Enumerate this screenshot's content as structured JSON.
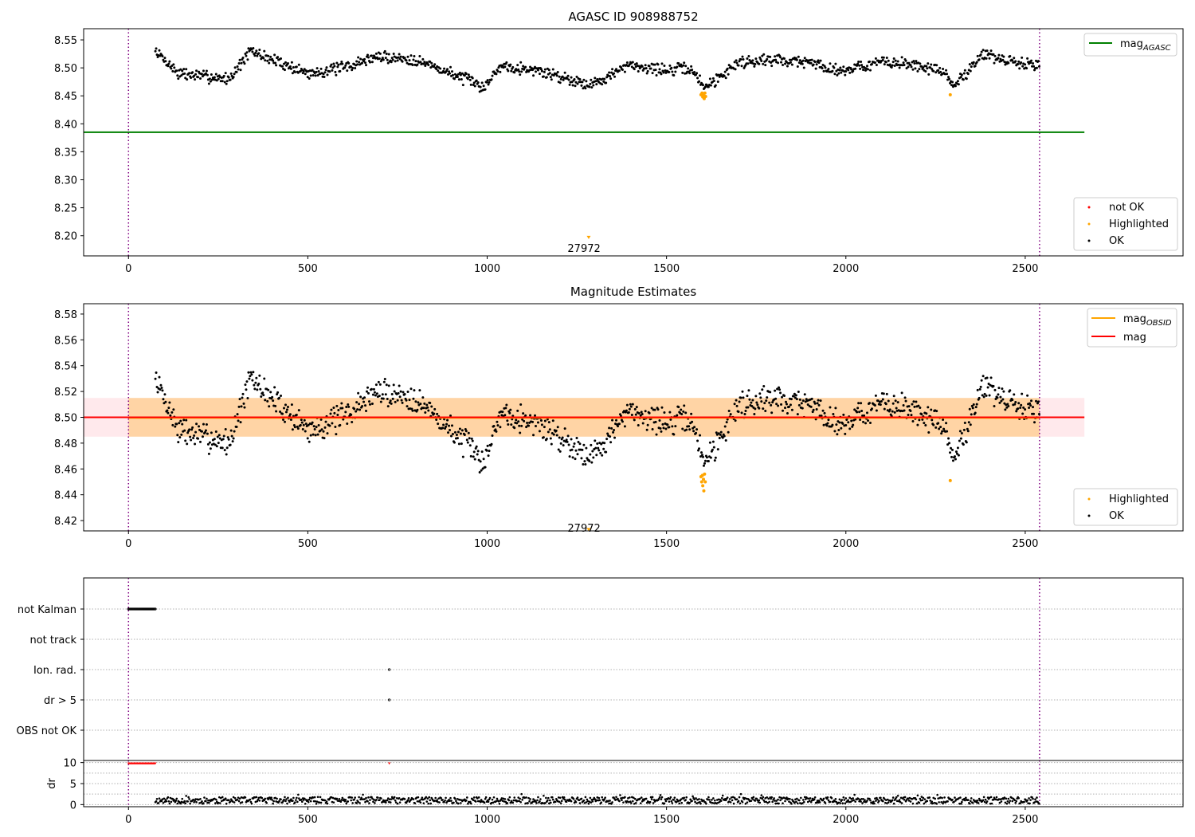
{
  "chart_data": [
    {
      "type": "scatter",
      "title": "AGASC ID 908988752",
      "xlabel": "",
      "ylabel": "",
      "xlim": [
        -125,
        2940
      ],
      "ylim": [
        8.164,
        8.57
      ],
      "xticks": [
        0,
        500,
        1000,
        1500,
        2000,
        2500
      ],
      "yticks": [
        8.2,
        8.25,
        8.3,
        8.35,
        8.4,
        8.45,
        8.5,
        8.55
      ],
      "vlines": [
        0,
        2540
      ],
      "reference_lines": [
        {
          "name": "mag_AGASC",
          "y": 8.385,
          "x_range": [
            -125,
            2665
          ],
          "color": "#008000"
        }
      ],
      "legend_top": [
        {
          "label": "mag",
          "sub": "AGASC",
          "color": "#008000"
        }
      ],
      "legend_bottom": [
        {
          "label": "not OK",
          "color": "#ff0000"
        },
        {
          "label": "Highlighted",
          "color": "#ffa500"
        },
        {
          "label": "OK",
          "color": "#000000"
        }
      ],
      "annotations": [
        {
          "text": "27972",
          "x": 1270,
          "y": 8.178
        }
      ],
      "series": [
        {
          "name": "OK",
          "color": "#000000",
          "x_range": [
            75,
            2540
          ],
          "profile": [
            [
              75,
              8.53
            ],
            [
              140,
              8.49
            ],
            [
              280,
              8.48
            ],
            [
              340,
              8.53
            ],
            [
              500,
              8.49
            ],
            [
              600,
              8.5
            ],
            [
              690,
              8.52
            ],
            [
              800,
              8.515
            ],
            [
              940,
              8.48
            ],
            [
              990,
              8.465
            ],
            [
              1040,
              8.505
            ],
            [
              1140,
              8.495
            ],
            [
              1230,
              8.48
            ],
            [
              1290,
              8.47
            ],
            [
              1400,
              8.505
            ],
            [
              1510,
              8.495
            ],
            [
              1560,
              8.5
            ],
            [
              1590,
              8.48
            ],
            [
              1610,
              8.465
            ],
            [
              1700,
              8.51
            ],
            [
              1800,
              8.515
            ],
            [
              1900,
              8.51
            ],
            [
              1980,
              8.495
            ],
            [
              2100,
              8.51
            ],
            [
              2200,
              8.505
            ],
            [
              2280,
              8.49
            ],
            [
              2300,
              8.465
            ],
            [
              2380,
              8.525
            ],
            [
              2460,
              8.51
            ],
            [
              2540,
              8.505
            ]
          ]
        },
        {
          "name": "Highlighted",
          "color": "#ffa500",
          "points": [
            [
              1596,
              8.452
            ],
            [
              1599,
              8.455
            ],
            [
              1601,
              8.448
            ],
            [
              1603,
              8.451
            ],
            [
              1605,
              8.445
            ],
            [
              1607,
              8.455
            ],
            [
              1609,
              8.449
            ],
            [
              2291,
              8.452
            ],
            [
              1283,
              8.197
            ]
          ]
        }
      ]
    },
    {
      "type": "scatter",
      "title": "Magnitude Estimates",
      "xlabel": "",
      "ylabel": "",
      "xlim": [
        -125,
        2940
      ],
      "ylim": [
        8.412,
        8.588
      ],
      "xticks": [
        0,
        500,
        1000,
        1500,
        2000,
        2500
      ],
      "yticks": [
        8.42,
        8.44,
        8.46,
        8.48,
        8.5,
        8.52,
        8.54,
        8.56,
        8.58
      ],
      "vlines": [
        0,
        2540
      ],
      "bands": [
        {
          "y0": 8.485,
          "y1": 8.515,
          "x_range": [
            -125,
            2665
          ],
          "color": "#ffb6c1"
        },
        {
          "y0": 8.485,
          "y1": 8.515,
          "x_range": [
            0,
            2540
          ],
          "color": "#ffa500"
        }
      ],
      "reference_lines": [
        {
          "name": "mag_OBSID",
          "y": 8.4995,
          "x_range": [
            0,
            2540
          ],
          "color": "#ffa500"
        },
        {
          "name": "mag",
          "y": 8.5,
          "x_range": [
            -125,
            2665
          ],
          "color": "#ff0000"
        }
      ],
      "legend_top": [
        {
          "label": "mag",
          "sub": "OBSID",
          "color": "#ffa500"
        },
        {
          "label": "mag",
          "sub": "",
          "color": "#ff0000"
        }
      ],
      "legend_bottom": [
        {
          "label": "Highlighted",
          "color": "#ffa500"
        },
        {
          "label": "OK",
          "color": "#000000"
        }
      ],
      "annotations": [
        {
          "text": "27972",
          "x": 1270,
          "y": 8.4145
        }
      ],
      "series": [
        {
          "name": "OK",
          "color": "#000000",
          "x_range": [
            75,
            2540
          ],
          "profile": [
            [
              75,
              8.53
            ],
            [
              140,
              8.49
            ],
            [
              280,
              8.48
            ],
            [
              340,
              8.53
            ],
            [
              500,
              8.49
            ],
            [
              600,
              8.5
            ],
            [
              690,
              8.52
            ],
            [
              800,
              8.515
            ],
            [
              940,
              8.48
            ],
            [
              990,
              8.465
            ],
            [
              1040,
              8.505
            ],
            [
              1140,
              8.495
            ],
            [
              1230,
              8.48
            ],
            [
              1290,
              8.47
            ],
            [
              1400,
              8.505
            ],
            [
              1510,
              8.495
            ],
            [
              1560,
              8.5
            ],
            [
              1590,
              8.48
            ],
            [
              1610,
              8.465
            ],
            [
              1700,
              8.51
            ],
            [
              1800,
              8.515
            ],
            [
              1900,
              8.51
            ],
            [
              1980,
              8.495
            ],
            [
              2100,
              8.51
            ],
            [
              2200,
              8.505
            ],
            [
              2280,
              8.49
            ],
            [
              2300,
              8.465
            ],
            [
              2380,
              8.525
            ],
            [
              2460,
              8.51
            ],
            [
              2540,
              8.505
            ]
          ]
        },
        {
          "name": "Highlighted",
          "color": "#ffa500",
          "points": [
            [
              1596,
              8.454
            ],
            [
              1598,
              8.45
            ],
            [
              1600,
              8.455
            ],
            [
              1601,
              8.447
            ],
            [
              1603,
              8.452
            ],
            [
              1604,
              8.443
            ],
            [
              1606,
              8.456
            ],
            [
              1608,
              8.45
            ],
            [
              2291,
              8.451
            ],
            [
              1283,
              8.413
            ]
          ]
        }
      ]
    },
    {
      "type": "scatter",
      "title": "",
      "xlim": [
        -125,
        2940
      ],
      "xticks": [
        0,
        500,
        1000,
        1500,
        2000,
        2500
      ],
      "vlines": [
        0,
        2540
      ],
      "flag_rows": [
        "not Kalman",
        "not track",
        "Ion. rad.",
        "dr > 5",
        "OBS not OK"
      ],
      "flag_points": [
        {
          "row": "not Kalman",
          "x_range": [
            0,
            75
          ],
          "color": "#000000"
        },
        {
          "row": "Ion. rad.",
          "x_range": [
            727,
            728
          ],
          "color": "#000000"
        },
        {
          "row": "dr > 5",
          "x_range": [
            727,
            728
          ],
          "color": "#000000"
        }
      ],
      "dr_panel": {
        "ylabel": "dr",
        "ylim": [
          -0.5,
          10.5
        ],
        "yticks": [
          0,
          5,
          10
        ],
        "clipped": [
          {
            "x_range": [
              0,
              75
            ],
            "y": 9.8,
            "color": "#ff0000"
          },
          {
            "x_range": [
              727,
              728
            ],
            "y": 9.8,
            "color": "#ff0000"
          }
        ],
        "series": {
          "name": "dr",
          "color": "#000000",
          "x_range": [
            75,
            2540
          ],
          "typical": 1.0,
          "max": 2.5
        }
      }
    }
  ]
}
